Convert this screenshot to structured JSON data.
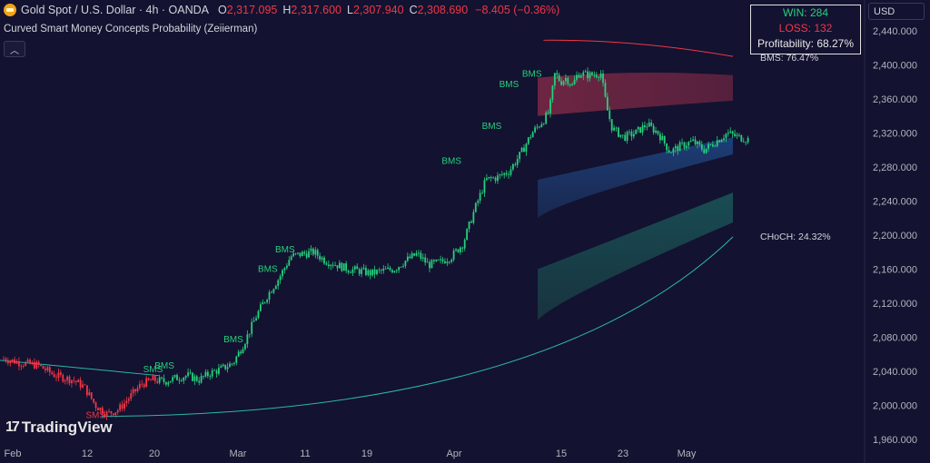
{
  "header": {
    "symbol": "Gold Spot / U.S. Dollar · 4h · OANDA",
    "o_label": "O",
    "o_value": "2,317.095",
    "h_label": "H",
    "h_value": "2,317.600",
    "l_label": "L",
    "l_value": "2,307.940",
    "c_label": "C",
    "c_value": "2,308.690",
    "change": "−8.405 (−0.36%)"
  },
  "indicator": {
    "name": "Curved Smart Money Concepts Probability (Zeiierman)",
    "collapse_icon": "chevron-up-icon"
  },
  "stats": {
    "win": "WIN: 284",
    "loss": "LOSS: 132",
    "profitability": "Profitability: 68.27%"
  },
  "currency": "USD",
  "logo": {
    "mark": "17",
    "text": "TradingView"
  },
  "colors": {
    "background": "#131230",
    "bull": "#26d07c",
    "bear": "#f23645",
    "bear_zone": "#8b2c48",
    "blue_zone": "#1f4a8a",
    "teal_zone": "#1b5a5a",
    "curve": "#2bb8a8"
  },
  "chart_data": {
    "type": "candlestick",
    "title": "",
    "xlabel": "",
    "ylabel": "",
    "ylim": [
      1960,
      2440
    ],
    "y_ticks": [
      "2,440.000",
      "2,400.000",
      "2,360.000",
      "2,320.000",
      "2,280.000",
      "2,240.000",
      "2,200.000",
      "2,160.000",
      "2,120.000",
      "2,080.000",
      "2,040.000",
      "2,000.000",
      "1,960.000"
    ],
    "x_ticks": [
      "Feb",
      "12",
      "20",
      "Mar",
      "11",
      "19",
      "Apr",
      "15",
      "23",
      "May"
    ],
    "price_path": [
      [
        0,
        2055
      ],
      [
        3,
        2050
      ],
      [
        6,
        2047
      ],
      [
        9,
        2035
      ],
      [
        12,
        2030
      ],
      [
        14,
        2022
      ],
      [
        16,
        2000
      ],
      [
        18,
        1990
      ],
      [
        20,
        1995
      ],
      [
        22,
        2010
      ],
      [
        24,
        2025
      ],
      [
        26,
        2030
      ],
      [
        28,
        2028
      ],
      [
        30,
        2032
      ],
      [
        32,
        2035
      ],
      [
        34,
        2030
      ],
      [
        36,
        2038
      ],
      [
        38,
        2043
      ],
      [
        40,
        2050
      ],
      [
        42,
        2075
      ],
      [
        44,
        2105
      ],
      [
        46,
        2130
      ],
      [
        48,
        2150
      ],
      [
        50,
        2175
      ],
      [
        52,
        2178
      ],
      [
        54,
        2180
      ],
      [
        56,
        2170
      ],
      [
        58,
        2165
      ],
      [
        60,
        2160
      ],
      [
        62,
        2158
      ],
      [
        64,
        2155
      ],
      [
        66,
        2158
      ],
      [
        68,
        2160
      ],
      [
        70,
        2170
      ],
      [
        72,
        2178
      ],
      [
        74,
        2165
      ],
      [
        76,
        2168
      ],
      [
        78,
        2175
      ],
      [
        80,
        2190
      ],
      [
        82,
        2230
      ],
      [
        84,
        2265
      ],
      [
        86,
        2268
      ],
      [
        88,
        2275
      ],
      [
        90,
        2295
      ],
      [
        92,
        2320
      ],
      [
        94,
        2335
      ],
      [
        95,
        2345
      ],
      [
        96,
        2390
      ],
      [
        97,
        2380
      ],
      [
        98,
        2385
      ],
      [
        99,
        2375
      ],
      [
        100,
        2390
      ],
      [
        102,
        2388
      ],
      [
        104,
        2390
      ],
      [
        105,
        2350
      ],
      [
        106,
        2325
      ],
      [
        108,
        2315
      ],
      [
        110,
        2320
      ],
      [
        112,
        2330
      ],
      [
        114,
        2320
      ],
      [
        116,
        2298
      ],
      [
        118,
        2305
      ],
      [
        120,
        2310
      ],
      [
        122,
        2300
      ],
      [
        124,
        2310
      ],
      [
        126,
        2320
      ],
      [
        128,
        2315
      ],
      [
        130,
        2312
      ]
    ],
    "labels": [
      {
        "text": "BMS",
        "color": "#26d07c",
        "x": 28,
        "y": 2043
      },
      {
        "text": "SMS",
        "color": "#26d07c",
        "x": 26,
        "y": 2039
      },
      {
        "text": "SMS",
        "color": "#f23645",
        "x": 16,
        "y": 1985
      },
      {
        "text": "BMS",
        "color": "#26d07c",
        "x": 40,
        "y": 2074
      },
      {
        "text": "BMS",
        "color": "#26d07c",
        "x": 46,
        "y": 2157
      },
      {
        "text": "BMS",
        "color": "#26d07c",
        "x": 49,
        "y": 2180
      },
      {
        "text": "BMS",
        "color": "#26d07c",
        "x": 78,
        "y": 2284
      },
      {
        "text": "BMS",
        "color": "#26d07c",
        "x": 85,
        "y": 2325
      },
      {
        "text": "BMS",
        "color": "#26d07c",
        "x": 88,
        "y": 2374
      },
      {
        "text": "BMS",
        "color": "#26d07c",
        "x": 92,
        "y": 2386
      }
    ],
    "side_labels": [
      {
        "text": "BMS: 76.47%",
        "y": 2409
      },
      {
        "text": "CHoCH: 24.32%",
        "y": 2199
      }
    ]
  }
}
